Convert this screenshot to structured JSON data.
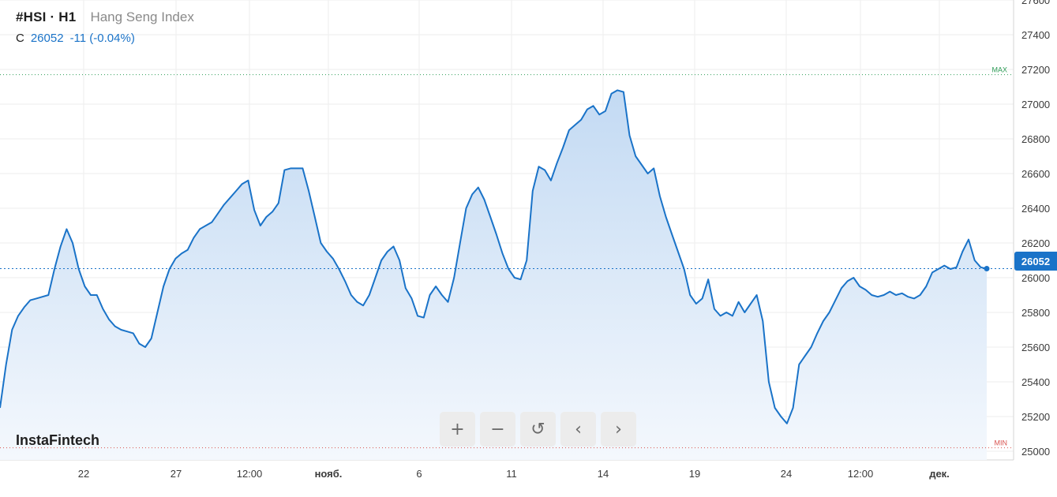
{
  "header": {
    "symbol": "#HSI · H1",
    "name": "Hang Seng Index",
    "c_label": "C",
    "last_price": "26052",
    "change": "-11 (-0.04%)"
  },
  "brand": "InstaFintech",
  "nav": {
    "zoom_in": "+",
    "zoom_out": "−",
    "reset": "↺",
    "back": "‹",
    "forward": "›"
  },
  "colors": {
    "line": "#1a73c8",
    "area_top": "#c3daf3",
    "area_bottom": "#f4f8fd",
    "max_line": "#2e9d57",
    "min_line": "#d9534f",
    "grid": "#ededed"
  },
  "chart_data": {
    "type": "area",
    "symbol": "#HSI",
    "timeframe": "H1",
    "y_axis": {
      "min": 24950,
      "max": 27600,
      "ticks": [
        25000,
        25200,
        25400,
        25600,
        25800,
        26000,
        26200,
        26400,
        26600,
        26800,
        27000,
        27200,
        27400,
        27600
      ],
      "position": "right"
    },
    "x_ticks": [
      "22",
      "27",
      "12:00",
      "нояб.",
      "6",
      "11",
      "14",
      "19",
      "24",
      "12:00",
      "дек."
    ],
    "bold_ticks": [
      "нояб.",
      "дек."
    ],
    "max_label": "MAX",
    "max_value": 27170,
    "min_label": "MIN",
    "min_value": 25020,
    "last_value": 26052,
    "last_label": "26052",
    "grid": true,
    "values": [
      25250,
      25500,
      25700,
      25780,
      25830,
      25870,
      25880,
      25890,
      25900,
      26050,
      26180,
      26280,
      26200,
      26050,
      25950,
      25900,
      25900,
      25820,
      25760,
      25720,
      25700,
      25690,
      25680,
      25620,
      25600,
      25650,
      25800,
      25950,
      26050,
      26110,
      26140,
      26160,
      26230,
      26280,
      26300,
      26320,
      26370,
      26420,
      26460,
      26500,
      26540,
      26560,
      26390,
      26300,
      26350,
      26380,
      26430,
      26620,
      26630,
      26630,
      26630,
      26500,
      26350,
      26200,
      26150,
      26110,
      26050,
      25980,
      25900,
      25860,
      25840,
      25900,
      26000,
      26100,
      26150,
      26180,
      26100,
      25940,
      25880,
      25780,
      25770,
      25900,
      25950,
      25900,
      25860,
      26000,
      26200,
      26400,
      26480,
      26520,
      26450,
      26350,
      26250,
      26140,
      26050,
      26000,
      25990,
      26100,
      26500,
      26640,
      26620,
      26560,
      26660,
      26750,
      26850,
      26880,
      26910,
      26970,
      26990,
      26940,
      26960,
      27060,
      27080,
      27070,
      26820,
      26700,
      26650,
      26600,
      26630,
      26470,
      26350,
      26250,
      26150,
      26050,
      25900,
      25850,
      25880,
      25990,
      25820,
      25780,
      25800,
      25780,
      25860,
      25800,
      25850,
      25900,
      25750,
      25400,
      25250,
      25200,
      25160,
      25250,
      25500,
      25550,
      25600,
      25680,
      25750,
      25800,
      25870,
      25940,
      25980,
      26000,
      25950,
      25930,
      25900,
      25890,
      25900,
      25920,
      25900,
      25910,
      25890,
      25880,
      25900,
      25950,
      26030,
      26050,
      26070,
      26050,
      26060,
      26150,
      26220,
      26100,
      26060,
      26052
    ]
  }
}
